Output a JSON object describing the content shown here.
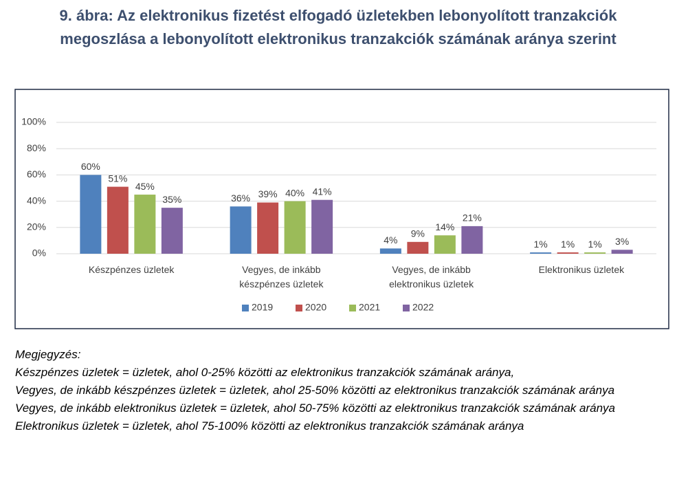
{
  "chart_data": {
    "type": "bar",
    "title": "9. ábra: Az elektronikus fizetést elfogadó üzletekben lebonyolított tranzakciók megoszlása a lebonyolított elektronikus tranzakciók számának aránya szerint",
    "categories": [
      "Készpénzes üzletek",
      "Vegyes, de inkább készpénzes üzletek",
      "Vegyes, de inkább elektronikus üzletek",
      "Elektronikus üzletek"
    ],
    "series": [
      {
        "name": "2019",
        "color": "#4f81bd",
        "values": [
          60,
          36,
          4,
          1
        ],
        "value_labels": [
          "60%",
          "36%",
          "4%",
          "1%"
        ]
      },
      {
        "name": "2020",
        "color": "#c0504d",
        "values": [
          51,
          39,
          9,
          1
        ],
        "value_labels": [
          "51%",
          "39%",
          "9%",
          "1%"
        ]
      },
      {
        "name": "2021",
        "color": "#9bbb59",
        "values": [
          45,
          40,
          14,
          1
        ],
        "value_labels": [
          "45%",
          "40%",
          "14%",
          "1%"
        ]
      },
      {
        "name": "2022",
        "color": "#8064a2",
        "values": [
          35,
          41,
          21,
          3
        ],
        "value_labels": [
          "35%",
          "41%",
          "21%",
          "3%"
        ]
      }
    ],
    "ylim": [
      0,
      100
    ],
    "yticks": [
      {
        "value": 0,
        "label": "0%"
      },
      {
        "value": 20,
        "label": "20%"
      },
      {
        "value": 40,
        "label": "40%"
      },
      {
        "value": 60,
        "label": "60%"
      },
      {
        "value": 80,
        "label": "80%"
      },
      {
        "value": 100,
        "label": "100%"
      }
    ],
    "grid": true,
    "legend": "bottom"
  },
  "note": {
    "heading": "Megjegyzés:",
    "lines": [
      "Készpénzes üzletek = üzletek, ahol 0-25% közötti az elektronikus tranzakciók számának aránya,",
      "Vegyes, de inkább készpénzes üzletek = üzletek, ahol 25-50% közötti az elektronikus tranzakciók számának aránya",
      "Vegyes, de inkább elektronikus üzletek = üzletek, ahol 50-75% közötti az elektronikus tranzakciók számának aránya",
      "Elektronikus üzletek = üzletek, ahol 75-100% közötti az elektronikus tranzakciók számának aránya"
    ]
  }
}
